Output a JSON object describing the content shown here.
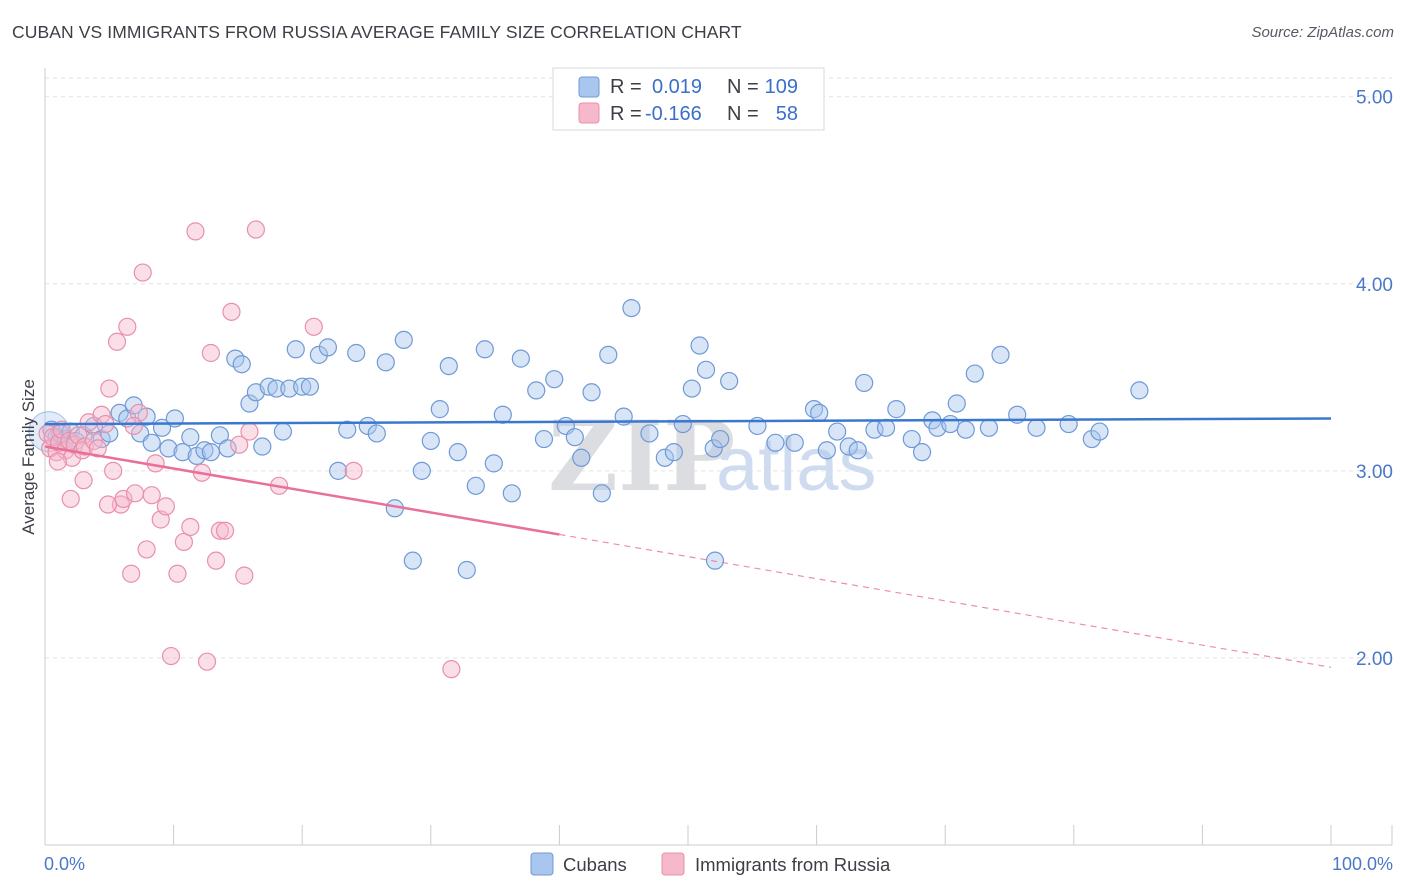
{
  "title": "CUBAN VS IMMIGRANTS FROM RUSSIA AVERAGE FAMILY SIZE CORRELATION CHART",
  "source": "Source: ZipAtlas.com",
  "watermark": {
    "zip": "ZIP",
    "atlas": "atlas"
  },
  "legend": {
    "rows": [
      {
        "r_label": "R =",
        "r_value": "0.019",
        "n_label": "N =",
        "n_value": "109"
      },
      {
        "r_label": "R =",
        "r_value": "-0.166",
        "n_label": "N =",
        "n_value": "58"
      }
    ]
  },
  "chart_data": {
    "type": "scatter",
    "title": "CUBAN VS IMMIGRANTS FROM RUSSIA AVERAGE FAMILY SIZE CORRELATION CHART",
    "xlabel": "",
    "ylabel": "Average Family Size",
    "xlim": [
      0,
      100
    ],
    "ylim": [
      1.0,
      5.1
    ],
    "x_tick_labels": [
      "0.0%",
      "100.0%"
    ],
    "y_ticks": [
      2.0,
      3.0,
      4.0,
      5.0
    ],
    "y_tick_labels": [
      "2.00",
      "3.00",
      "4.00",
      "5.00"
    ],
    "grid": true,
    "colors": {
      "cubans_fill": "#a9c6ee",
      "cubans_stroke": "#6f9ad6",
      "cubans_line": "#3a78d0",
      "russia_fill": "#f6b8cb",
      "russia_stroke": "#e890ab",
      "russia_line": "#e8709a",
      "value_blue": "#3a6fc8",
      "grid": "#dfe2e8"
    },
    "series": [
      {
        "name": "Cubans",
        "R": 0.019,
        "N": 109,
        "trend": {
          "x": [
            0,
            100
          ],
          "y": [
            3.25,
            3.28
          ]
        },
        "points": [
          [
            0.5,
            3.22
          ],
          [
            0.9,
            3.18
          ],
          [
            1.2,
            3.2
          ],
          [
            1.6,
            3.17
          ],
          [
            2.0,
            3.21
          ],
          [
            2.4,
            3.16
          ],
          [
            3.0,
            3.19
          ],
          [
            3.8,
            3.24
          ],
          [
            4.4,
            3.17
          ],
          [
            5.0,
            3.2
          ],
          [
            5.8,
            3.31
          ],
          [
            6.4,
            3.28
          ],
          [
            6.9,
            3.35
          ],
          [
            7.4,
            3.2
          ],
          [
            7.9,
            3.29
          ],
          [
            8.3,
            3.15
          ],
          [
            9.1,
            3.23
          ],
          [
            9.6,
            3.12
          ],
          [
            10.1,
            3.28
          ],
          [
            10.7,
            3.1
          ],
          [
            11.3,
            3.18
          ],
          [
            11.8,
            3.08
          ],
          [
            12.4,
            3.11
          ],
          [
            12.9,
            3.1
          ],
          [
            13.6,
            3.19
          ],
          [
            14.2,
            3.12
          ],
          [
            14.8,
            3.6
          ],
          [
            15.3,
            3.57
          ],
          [
            15.9,
            3.36
          ],
          [
            16.4,
            3.42
          ],
          [
            16.9,
            3.13
          ],
          [
            17.4,
            3.45
          ],
          [
            18.0,
            3.44
          ],
          [
            18.5,
            3.21
          ],
          [
            19.0,
            3.44
          ],
          [
            19.5,
            3.65
          ],
          [
            20.0,
            3.45
          ],
          [
            20.6,
            3.45
          ],
          [
            21.3,
            3.62
          ],
          [
            22.0,
            3.66
          ],
          [
            22.8,
            3.0
          ],
          [
            23.5,
            3.22
          ],
          [
            24.2,
            3.63
          ],
          [
            25.1,
            3.24
          ],
          [
            25.8,
            3.2
          ],
          [
            26.5,
            3.58
          ],
          [
            27.2,
            2.8
          ],
          [
            27.9,
            3.7
          ],
          [
            28.6,
            2.52
          ],
          [
            29.3,
            3.0
          ],
          [
            30.0,
            3.16
          ],
          [
            30.7,
            3.33
          ],
          [
            31.4,
            3.56
          ],
          [
            32.1,
            3.1
          ],
          [
            32.8,
            2.47
          ],
          [
            33.5,
            2.92
          ],
          [
            34.2,
            3.65
          ],
          [
            34.9,
            3.04
          ],
          [
            35.6,
            3.3
          ],
          [
            36.3,
            2.88
          ],
          [
            37.0,
            3.6
          ],
          [
            38.2,
            3.43
          ],
          [
            38.8,
            3.17
          ],
          [
            39.6,
            3.49
          ],
          [
            40.5,
            3.24
          ],
          [
            41.2,
            3.18
          ],
          [
            41.7,
            3.07
          ],
          [
            42.5,
            3.42
          ],
          [
            43.3,
            2.88
          ],
          [
            43.8,
            3.62
          ],
          [
            45.0,
            3.29
          ],
          [
            45.6,
            3.87
          ],
          [
            47.0,
            3.2
          ],
          [
            48.2,
            3.07
          ],
          [
            48.9,
            3.1
          ],
          [
            49.6,
            3.25
          ],
          [
            50.3,
            3.44
          ],
          [
            50.9,
            3.67
          ],
          [
            51.4,
            3.54
          ],
          [
            52.0,
            3.12
          ],
          [
            52.5,
            3.17
          ],
          [
            53.2,
            3.48
          ],
          [
            55.4,
            3.24
          ],
          [
            56.8,
            3.15
          ],
          [
            58.3,
            3.15
          ],
          [
            59.8,
            3.33
          ],
          [
            60.2,
            3.31
          ],
          [
            60.8,
            3.11
          ],
          [
            61.6,
            3.21
          ],
          [
            62.5,
            3.13
          ],
          [
            63.2,
            3.11
          ],
          [
            63.7,
            3.47
          ],
          [
            64.5,
            3.22
          ],
          [
            65.4,
            3.23
          ],
          [
            66.2,
            3.33
          ],
          [
            67.4,
            3.17
          ],
          [
            68.2,
            3.1
          ],
          [
            69.0,
            3.27
          ],
          [
            69.4,
            3.23
          ],
          [
            70.4,
            3.25
          ],
          [
            70.9,
            3.36
          ],
          [
            71.6,
            3.22
          ],
          [
            72.3,
            3.52
          ],
          [
            73.4,
            3.23
          ],
          [
            74.3,
            3.62
          ],
          [
            75.6,
            3.3
          ],
          [
            77.1,
            3.23
          ],
          [
            79.6,
            3.25
          ],
          [
            81.4,
            3.17
          ],
          [
            82.0,
            3.21
          ],
          [
            85.1,
            3.43
          ],
          [
            52.1,
            2.52
          ]
        ]
      },
      {
        "name": "Immigrants from Russia",
        "R": -0.166,
        "N": 58,
        "trend": {
          "x": [
            0,
            40
          ],
          "y": [
            3.13,
            2.66
          ]
        },
        "trend_dashed": {
          "x": [
            40,
            100
          ],
          "y": [
            2.66,
            1.95
          ]
        },
        "points": [
          [
            0.2,
            3.2
          ],
          [
            0.4,
            3.12
          ],
          [
            0.6,
            3.18
          ],
          [
            0.9,
            3.1
          ],
          [
            1.1,
            3.15
          ],
          [
            1.3,
            3.22
          ],
          [
            1.6,
            3.11
          ],
          [
            1.9,
            3.16
          ],
          [
            2.1,
            3.07
          ],
          [
            2.3,
            3.14
          ],
          [
            2.6,
            3.19
          ],
          [
            2.9,
            3.11
          ],
          [
            3.1,
            3.13
          ],
          [
            3.4,
            3.26
          ],
          [
            3.8,
            3.16
          ],
          [
            4.1,
            3.12
          ],
          [
            4.4,
            3.3
          ],
          [
            4.7,
            3.25
          ],
          [
            5.0,
            3.44
          ],
          [
            5.3,
            3.0
          ],
          [
            5.6,
            3.69
          ],
          [
            5.9,
            2.82
          ],
          [
            6.1,
            2.85
          ],
          [
            6.4,
            3.77
          ],
          [
            6.7,
            2.45
          ],
          [
            7.0,
            2.88
          ],
          [
            7.3,
            3.31
          ],
          [
            7.6,
            4.06
          ],
          [
            7.9,
            2.58
          ],
          [
            8.3,
            2.87
          ],
          [
            8.6,
            3.04
          ],
          [
            9.0,
            2.74
          ],
          [
            9.4,
            2.81
          ],
          [
            9.8,
            2.01
          ],
          [
            10.3,
            2.45
          ],
          [
            10.8,
            2.62
          ],
          [
            11.3,
            2.7
          ],
          [
            11.7,
            4.28
          ],
          [
            12.2,
            2.99
          ],
          [
            12.6,
            1.98
          ],
          [
            12.9,
            3.63
          ],
          [
            13.3,
            2.52
          ],
          [
            13.6,
            2.68
          ],
          [
            14.0,
            2.68
          ],
          [
            14.5,
            3.85
          ],
          [
            15.1,
            3.14
          ],
          [
            15.5,
            2.44
          ],
          [
            15.9,
            3.21
          ],
          [
            16.4,
            4.29
          ],
          [
            18.2,
            2.92
          ],
          [
            20.9,
            3.77
          ],
          [
            24.0,
            3.0
          ],
          [
            31.6,
            1.94
          ],
          [
            3.0,
            2.95
          ],
          [
            4.9,
            2.82
          ],
          [
            2.0,
            2.85
          ],
          [
            6.9,
            3.24
          ],
          [
            1.0,
            3.05
          ]
        ]
      }
    ]
  },
  "bottom_legend": {
    "items": [
      "Cubans",
      "Immigrants from Russia"
    ]
  }
}
